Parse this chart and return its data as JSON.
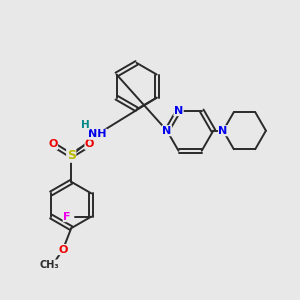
{
  "bg_color": "#e8e8e8",
  "bond_color": "#2a2a2a",
  "bond_width": 1.4,
  "atom_colors": {
    "N": "#0000ee",
    "O": "#ee0000",
    "S": "#bbbb00",
    "F": "#ee00ee",
    "H": "#008888",
    "C": "#2a2a2a"
  },
  "font_size": 7.5
}
